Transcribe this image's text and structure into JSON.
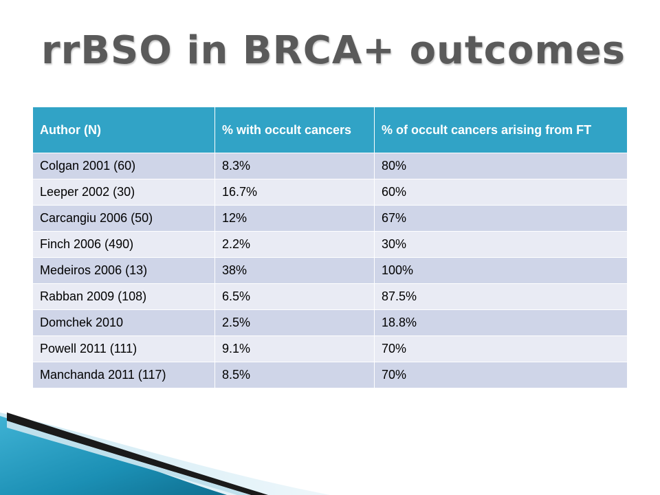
{
  "title": "rrBSO in BRCA+ outcomes",
  "table": {
    "headers": [
      "Author (N)",
      "% with occult cancers",
      "% of occult cancers arising from FT"
    ],
    "rows": [
      [
        "Colgan 2001 (60)",
        "8.3%",
        "80%"
      ],
      [
        "Leeper 2002 (30)",
        "16.7%",
        "60%"
      ],
      [
        "Carcangiu 2006 (50)",
        "12%",
        "67%"
      ],
      [
        "Finch 2006 (490)",
        "2.2%",
        "30%"
      ],
      [
        "Medeiros 2006 (13)",
        "38%",
        "100%"
      ],
      [
        "Rabban 2009 (108)",
        "6.5%",
        "87.5%"
      ],
      [
        "Domchek 2010",
        "2.5%",
        "18.8%"
      ],
      [
        "Powell 2011 (111)",
        "9.1%",
        "70%"
      ],
      [
        "Manchanda 2011 (117)",
        "8.5%",
        "70%"
      ]
    ]
  },
  "colors": {
    "header": "#31a3c6",
    "row_odd": "#cfd5e8",
    "row_even": "#e9ebf4",
    "title": "#5a5a5a",
    "decor_teal": "#1b8fb4",
    "decor_dark": "#1a1a1a"
  }
}
